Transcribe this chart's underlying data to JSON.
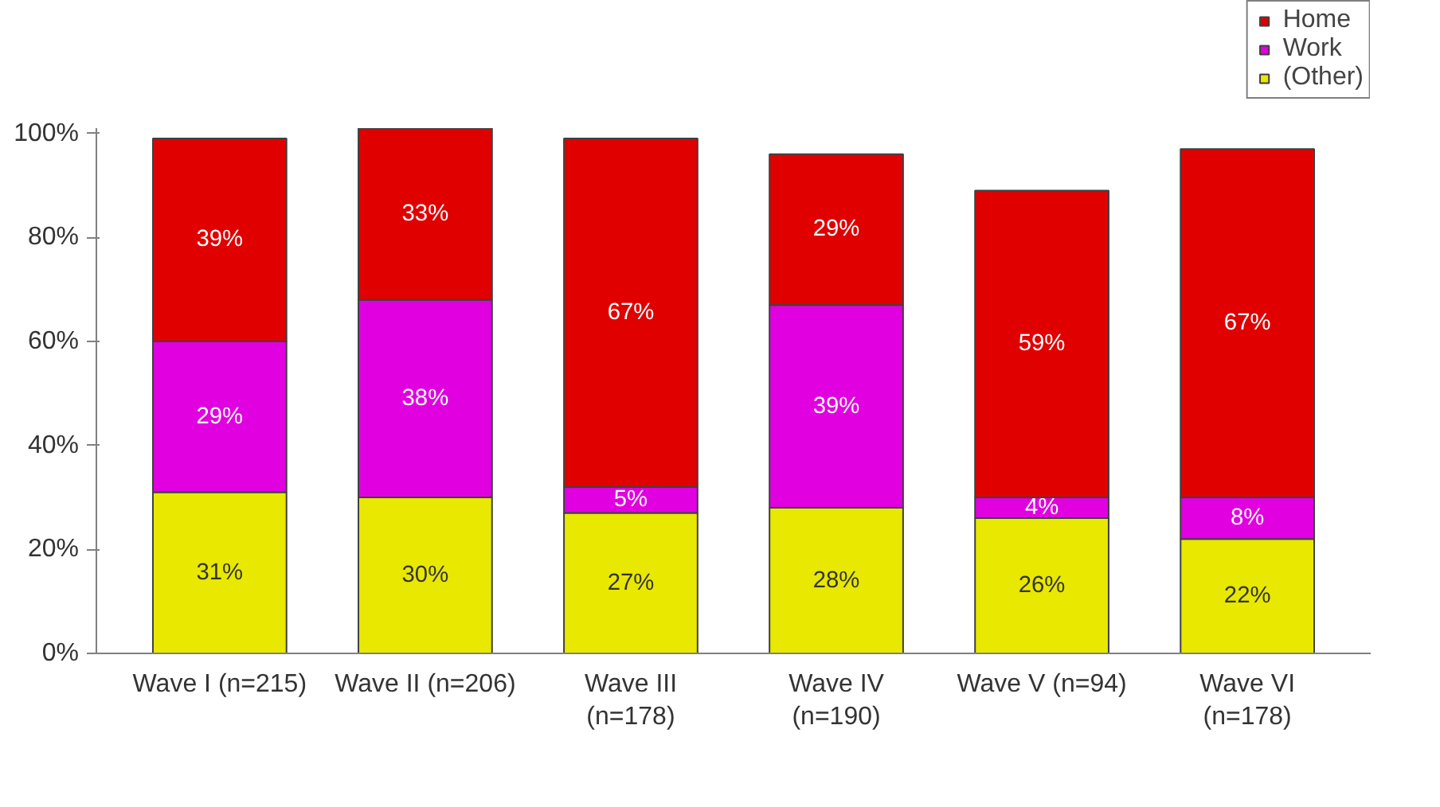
{
  "chart_data": {
    "type": "bar",
    "stacked": true,
    "categories": [
      "Wave I (n=215)",
      "Wave II (n=206)",
      "Wave III\n(n=178)",
      "Wave IV\n(n=190)",
      "Wave V (n=94)",
      "Wave VI\n(n=178)"
    ],
    "series": [
      {
        "name": "(Other)",
        "color": "#e8e800",
        "values": [
          31,
          30,
          27,
          28,
          26,
          22
        ],
        "value_labels": [
          "31%",
          "30%",
          "27%",
          "28%",
          "26%",
          "22%"
        ]
      },
      {
        "name": "Work",
        "color": "#e000e0",
        "values": [
          29,
          38,
          5,
          39,
          4,
          8
        ],
        "value_labels": [
          "29%",
          "38%",
          "5%",
          "39%",
          "4%",
          "8%"
        ]
      },
      {
        "name": "Home",
        "color": "#e00000",
        "values": [
          39,
          33,
          67,
          29,
          59,
          67
        ],
        "value_labels": [
          "39%",
          "33%",
          "67%",
          "29%",
          "59%",
          "67%"
        ]
      }
    ],
    "ylim": [
      0,
      101
    ],
    "yticks": [
      {
        "value": 0,
        "label": "0%"
      },
      {
        "value": 20,
        "label": "20%"
      },
      {
        "value": 40,
        "label": "40%"
      },
      {
        "value": 60,
        "label": "60%"
      },
      {
        "value": 80,
        "label": "80%"
      },
      {
        "value": 100,
        "label": "100%"
      }
    ],
    "grid": false,
    "legend": "top right"
  }
}
